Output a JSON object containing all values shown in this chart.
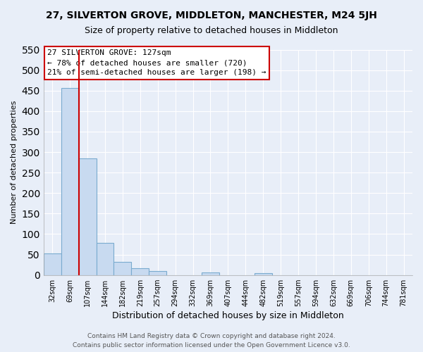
{
  "title": "27, SILVERTON GROVE, MIDDLETON, MANCHESTER, M24 5JH",
  "subtitle": "Size of property relative to detached houses in Middleton",
  "xlabel": "Distribution of detached houses by size in Middleton",
  "ylabel": "Number of detached properties",
  "bar_labels": [
    "32sqm",
    "69sqm",
    "107sqm",
    "144sqm",
    "182sqm",
    "219sqm",
    "257sqm",
    "294sqm",
    "332sqm",
    "369sqm",
    "407sqm",
    "444sqm",
    "482sqm",
    "519sqm",
    "557sqm",
    "594sqm",
    "632sqm",
    "669sqm",
    "706sqm",
    "744sqm",
    "781sqm"
  ],
  "bar_values": [
    53,
    456,
    284,
    78,
    32,
    17,
    9,
    0,
    0,
    6,
    0,
    0,
    4,
    0,
    0,
    0,
    0,
    0,
    0,
    0,
    0
  ],
  "bar_color": "#c8daf0",
  "bar_edge_color": "#7aabcf",
  "ylim": [
    0,
    550
  ],
  "yticks": [
    0,
    50,
    100,
    150,
    200,
    250,
    300,
    350,
    400,
    450,
    500,
    550
  ],
  "property_line_x": 1.5,
  "property_line_color": "#cc0000",
  "annotation_text_line1": "27 SILVERTON GROVE: 127sqm",
  "annotation_text_line2": "← 78% of detached houses are smaller (720)",
  "annotation_text_line3": "21% of semi-detached houses are larger (198) →",
  "footer_line1": "Contains HM Land Registry data © Crown copyright and database right 2024.",
  "footer_line2": "Contains public sector information licensed under the Open Government Licence v3.0.",
  "bg_color": "#e8eef8",
  "grid_color": "#ffffff",
  "title_fontsize": 10,
  "subtitle_fontsize": 9,
  "ylabel_fontsize": 8,
  "xlabel_fontsize": 9,
  "tick_fontsize": 7,
  "annot_fontsize": 8,
  "footer_fontsize": 6.5
}
